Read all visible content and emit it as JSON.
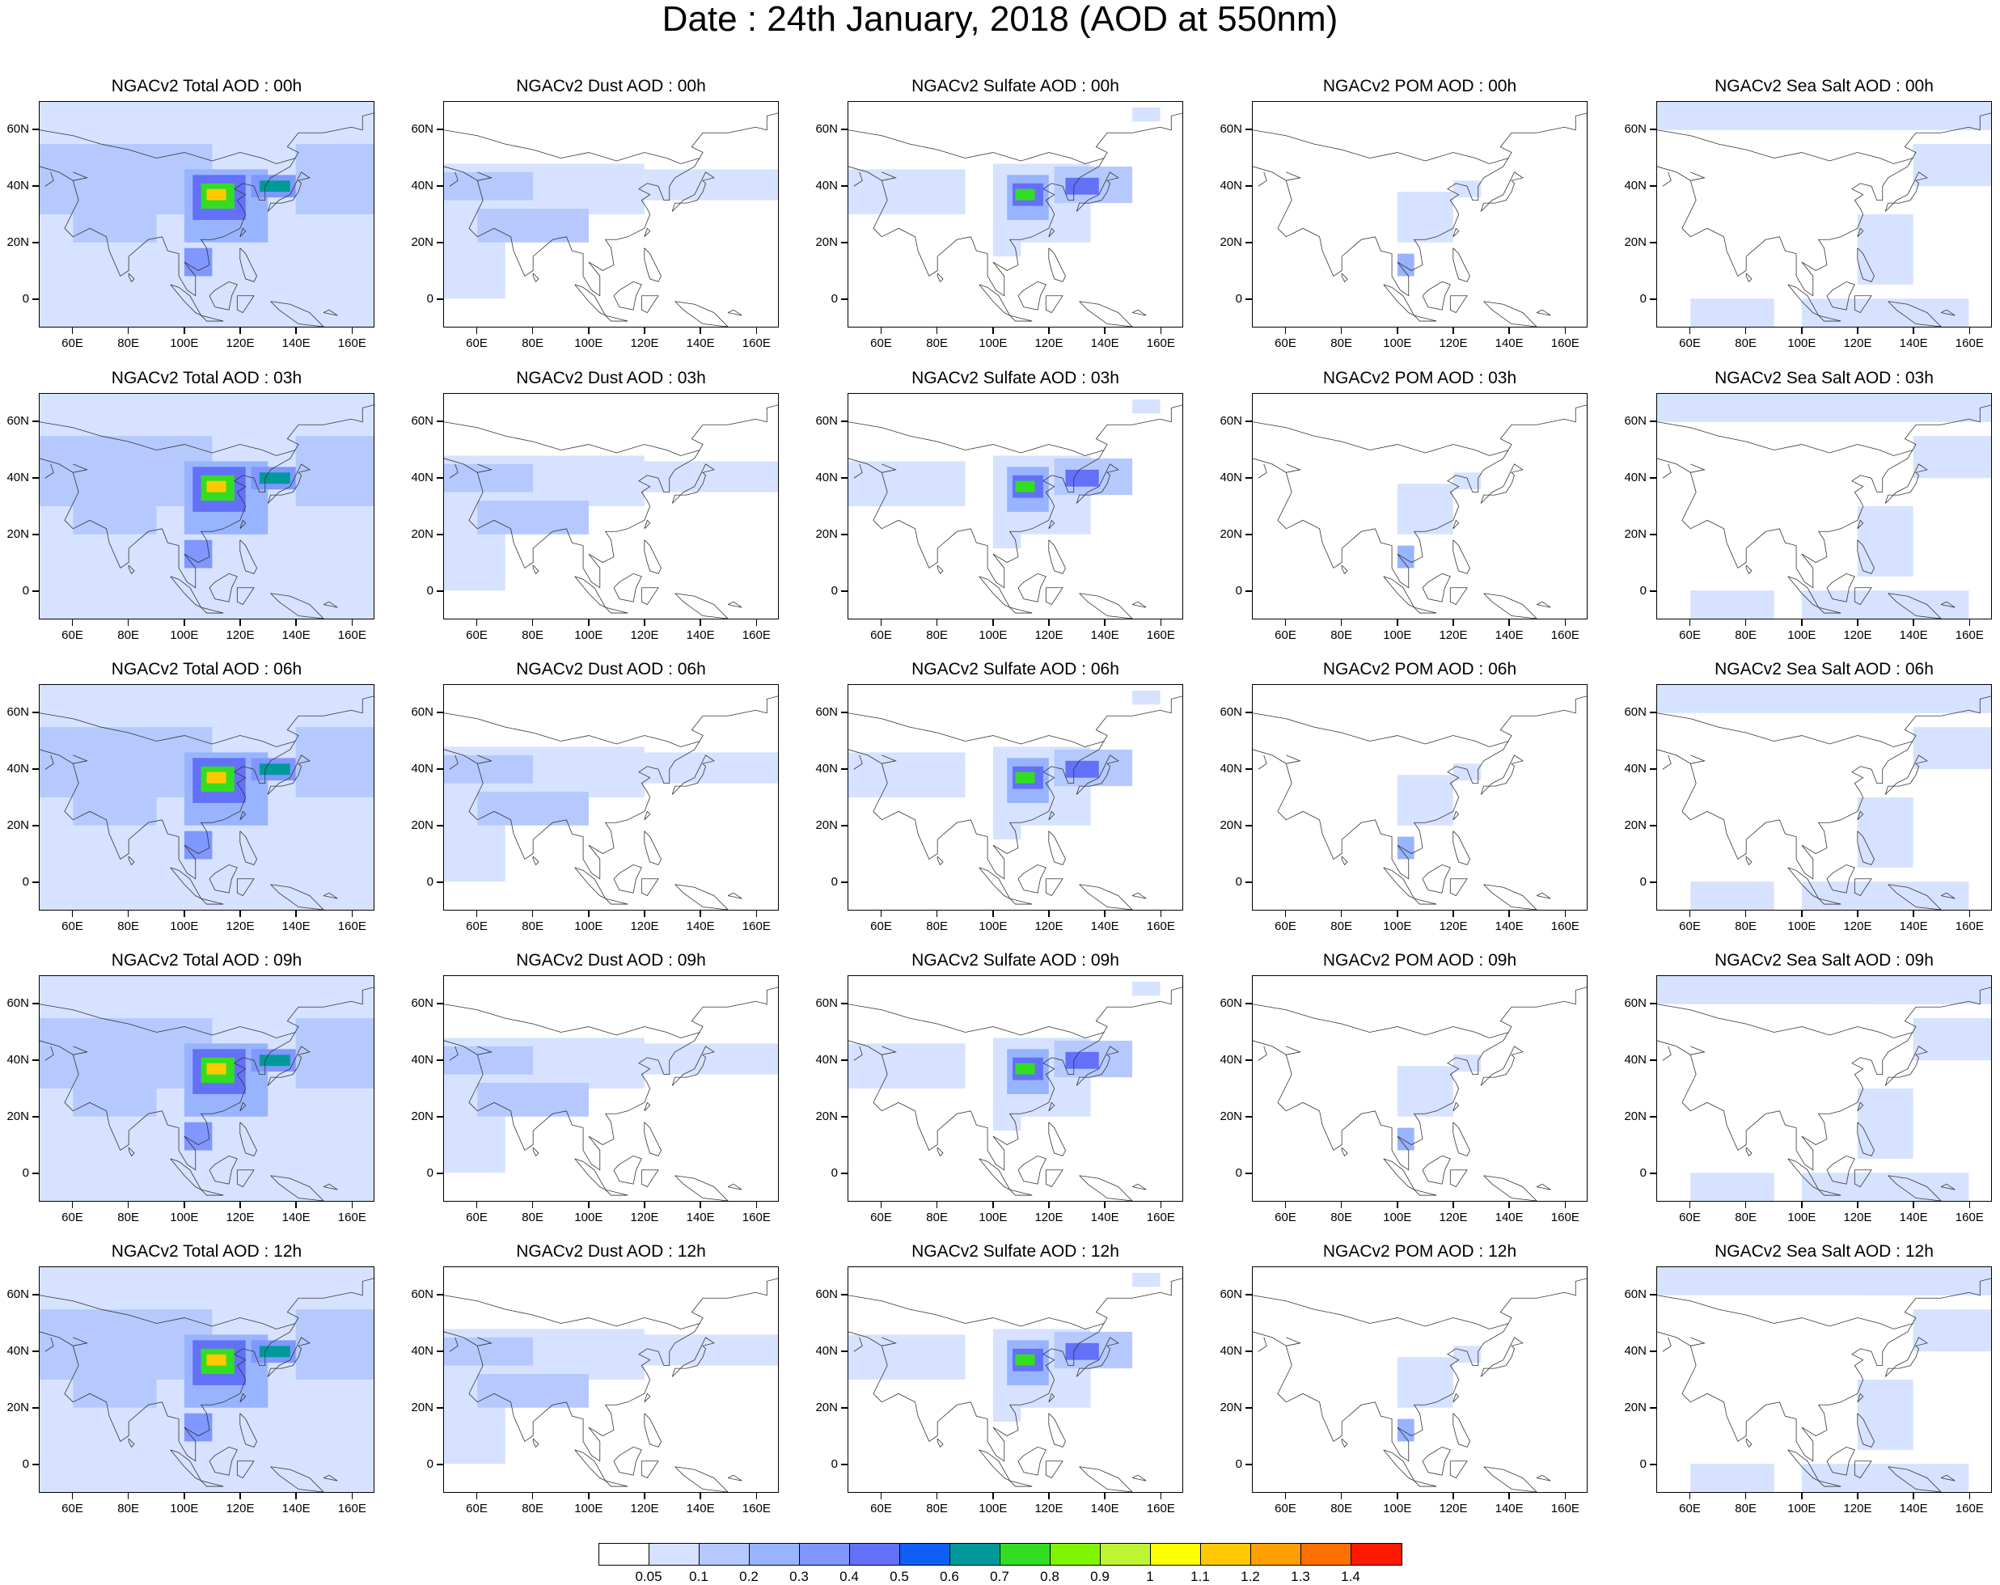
{
  "title": "Date : 24th January, 2018 (AOD at 550nm)",
  "y_ticks": [
    "60N",
    "40N",
    "20N",
    "0"
  ],
  "x_ticks": [
    "60E",
    "80E",
    "100E",
    "120E",
    "140E",
    "160E"
  ],
  "panels": [
    [
      {
        "title": "NGACv2 Total AOD : 00h",
        "field": "total"
      },
      {
        "title": "NGACv2 Dust AOD : 00h",
        "field": "dust"
      },
      {
        "title": "NGACv2 Sulfate AOD : 00h",
        "field": "sulfate"
      },
      {
        "title": "NGACv2 POM AOD : 00h",
        "field": "pom"
      },
      {
        "title": "NGACv2 Sea Salt AOD : 00h",
        "field": "seasalt"
      }
    ],
    [
      {
        "title": "NGACv2 Total AOD : 03h",
        "field": "total"
      },
      {
        "title": "NGACv2 Dust AOD : 03h",
        "field": "dust"
      },
      {
        "title": "NGACv2 Sulfate AOD : 03h",
        "field": "sulfate"
      },
      {
        "title": "NGACv2 POM AOD : 03h",
        "field": "pom"
      },
      {
        "title": "NGACv2 Sea Salt AOD : 03h",
        "field": "seasalt"
      }
    ],
    [
      {
        "title": "NGACv2 Total AOD : 06h",
        "field": "total"
      },
      {
        "title": "NGACv2 Dust AOD : 06h",
        "field": "dust"
      },
      {
        "title": "NGACv2 Sulfate AOD : 06h",
        "field": "sulfate"
      },
      {
        "title": "NGACv2 POM AOD : 06h",
        "field": "pom"
      },
      {
        "title": "NGACv2 Sea Salt AOD : 06h",
        "field": "seasalt"
      }
    ],
    [
      {
        "title": "NGACv2 Total AOD : 09h",
        "field": "total"
      },
      {
        "title": "NGACv2 Dust AOD : 09h",
        "field": "dust"
      },
      {
        "title": "NGACv2 Sulfate AOD : 09h",
        "field": "sulfate"
      },
      {
        "title": "NGACv2 POM AOD : 09h",
        "field": "pom"
      },
      {
        "title": "NGACv2 Sea Salt  AOD : 09h",
        "field": "seasalt"
      }
    ],
    [
      {
        "title": "NGACv2 Total AOD  : 12h",
        "field": "total"
      },
      {
        "title": "NGACv2 Dust AOD : 12h",
        "field": "dust"
      },
      {
        "title": "NGACv2 Sulfate AOD : 12h",
        "field": "sulfate"
      },
      {
        "title": "NGACv2 POM  AOD : 12h",
        "field": "pom"
      },
      {
        "title": "NGACv2 Sea Salt  AOD : 12h",
        "field": "seasalt"
      }
    ]
  ],
  "colorbar": {
    "labels": [
      "0.05",
      "0.1",
      "0.2",
      "0.3",
      "0.4",
      "0.5",
      "0.6",
      "0.7",
      "0.8",
      "0.9",
      "1",
      "1.1",
      "1.2",
      "1.3",
      "1.4"
    ],
    "colors": [
      "#ffffff",
      "#d6e2ff",
      "#b5c9ff",
      "#98b4ff",
      "#8097ff",
      "#6370f8",
      "#0f5ff5",
      "#009999",
      "#33dd22",
      "#7ff500",
      "#bef533",
      "#ffff00",
      "#ffc800",
      "#ffa000",
      "#ff7000",
      "#ff1a00"
    ]
  }
}
